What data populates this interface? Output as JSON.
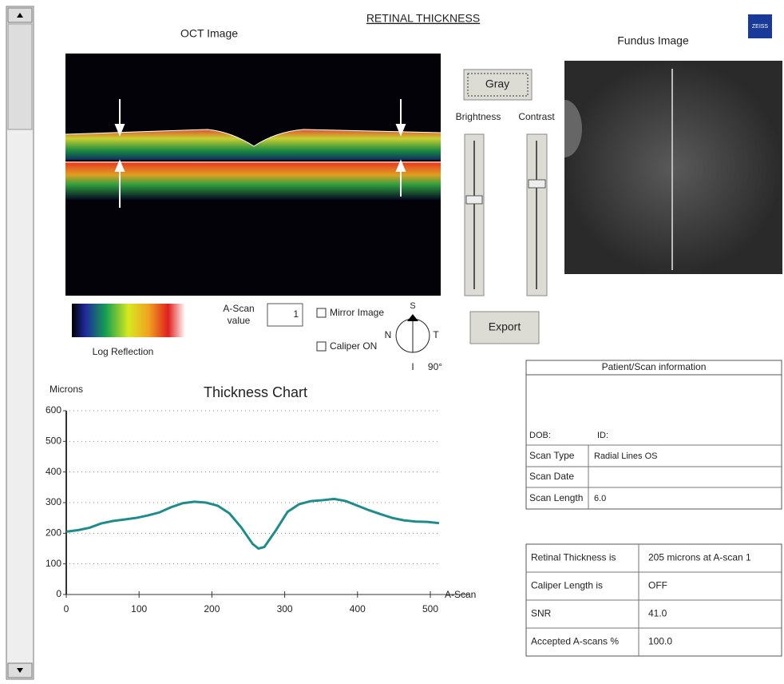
{
  "title": "RETINAL THICKNESS",
  "logo": "ZEISS",
  "oct": {
    "title": "OCT Image",
    "legend": "Log Reflection"
  },
  "fundus": {
    "title": "Fundus Image"
  },
  "controls": {
    "gray": "Gray",
    "brightness": "Brightness",
    "contrast": "Contrast",
    "export": "Export",
    "a_scan_label_1": "A-Scan",
    "a_scan_label_2": "value",
    "a_scan_value": "1",
    "mirror": "Mirror Image",
    "caliper": "Caliper ON"
  },
  "compass": {
    "s": "S",
    "n": "N",
    "t": "T",
    "i": "I",
    "angle": "90°"
  },
  "patient_info": {
    "title": "Patient/Scan information",
    "dob": "DOB:",
    "id": "ID:",
    "scan_type": "Scan Type",
    "scan_type_value": "Radial Lines OS",
    "scan_date": "Scan Date",
    "scan_length": "Scan Length",
    "scan_length_value": "6.0"
  },
  "results": {
    "rows": [
      [
        "Retinal Thickness is",
        "205 microns at A-scan 1"
      ],
      [
        "Caliper Length is",
        "OFF"
      ],
      [
        "SNR",
        "41.0"
      ],
      [
        "Accepted A-scans %",
        "100.0"
      ]
    ]
  },
  "chart_data": {
    "type": "line",
    "title": "Thickness Chart",
    "y_label": "Microns",
    "x_label": "A-Scan",
    "x": [
      0,
      16,
      32,
      48,
      64,
      80,
      96,
      112,
      128,
      144,
      160,
      176,
      192,
      208,
      224,
      240,
      256,
      264,
      272,
      288,
      304,
      320,
      336,
      352,
      368,
      384,
      400,
      416,
      432,
      448,
      464,
      480,
      496,
      512
    ],
    "series": [
      {
        "color": "#1f8c8c",
        "values": [
          205,
          210,
          218,
          232,
          240,
          245,
          250,
          258,
          268,
          285,
          298,
          303,
          300,
          290,
          265,
          220,
          165,
          150,
          155,
          210,
          270,
          295,
          305,
          308,
          312,
          305,
          290,
          275,
          262,
          250,
          242,
          238,
          237,
          233
        ]
      }
    ],
    "xlim": [
      0,
      515
    ],
    "ylim": [
      0,
      600
    ],
    "xticks": [
      0,
      100,
      200,
      300,
      400,
      500
    ],
    "yticks": [
      0,
      100,
      200,
      300,
      400,
      500,
      600
    ],
    "grid": true
  }
}
